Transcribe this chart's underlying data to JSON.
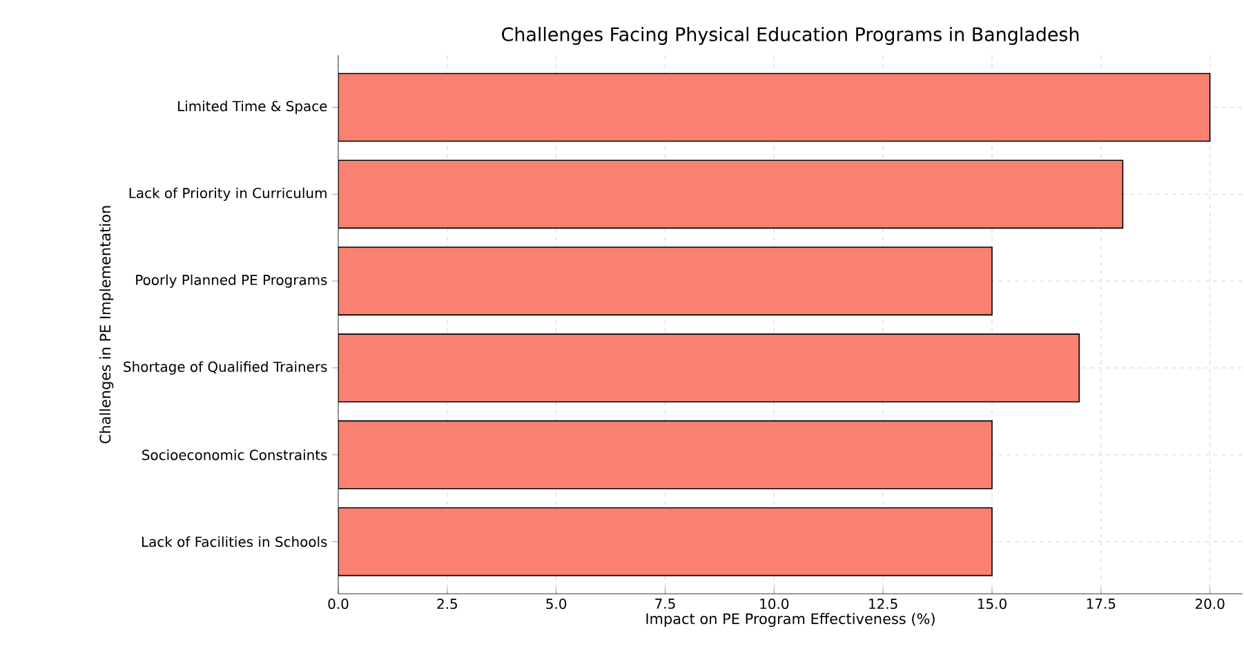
{
  "chart_data": {
    "type": "bar",
    "orientation": "horizontal",
    "title": "Challenges Facing Physical Education Programs in Bangladesh",
    "xlabel": "Impact on PE Program Effectiveness (%)",
    "ylabel": "Challenges in PE Implementation",
    "categories": [
      "Limited Time & Space",
      "Lack of Priority in Curriculum",
      "Poorly Planned PE Programs",
      "Shortage of Qualified Trainers",
      "Socioeconomic Constraints",
      "Lack of Facilities in Schools"
    ],
    "values": [
      20,
      18,
      15,
      17,
      15,
      15
    ],
    "color": "#fa8072",
    "xlim": [
      0,
      20.75
    ],
    "xticks": [
      {
        "value": 0,
        "label": "0.0"
      },
      {
        "value": 2.5,
        "label": "2.5"
      },
      {
        "value": 5,
        "label": "5.0"
      },
      {
        "value": 7.5,
        "label": "7.5"
      },
      {
        "value": 10,
        "label": "10.0"
      },
      {
        "value": 12.5,
        "label": "12.5"
      },
      {
        "value": 15,
        "label": "15.0"
      },
      {
        "value": 17.5,
        "label": "17.5"
      },
      {
        "value": 20,
        "label": "20.0"
      }
    ],
    "grid": true
  }
}
